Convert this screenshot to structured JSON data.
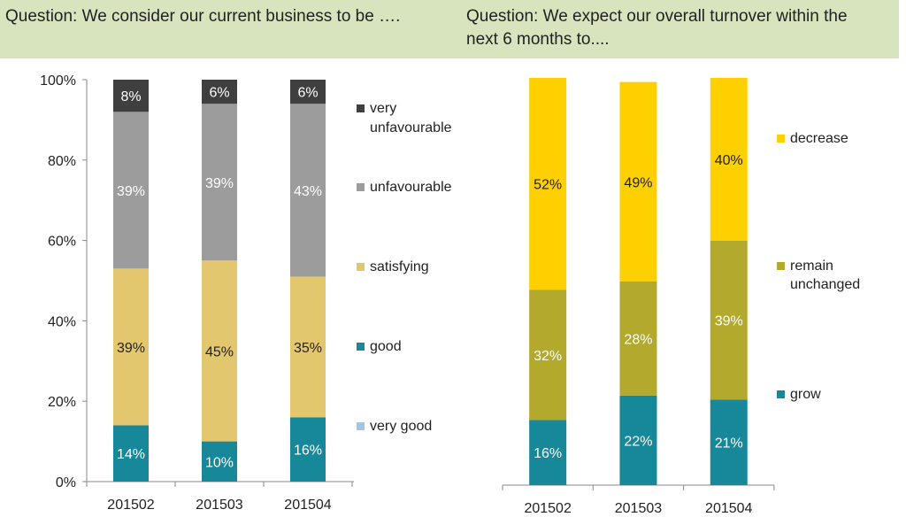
{
  "questions": {
    "left": "Question: We consider our current business to be ….",
    "right": "Question: We expect our overall turnover within the next 6 months to...."
  },
  "chart_data": [
    {
      "type": "bar",
      "stacked": true,
      "categories": [
        "201502",
        "201503",
        "201504"
      ],
      "ylim": [
        0,
        100
      ],
      "yticks": [
        "0%",
        "20%",
        "40%",
        "60%",
        "80%",
        "100%"
      ],
      "series": [
        {
          "name": "very good",
          "color": "#9fc7e4",
          "values": [
            0,
            0,
            0
          ],
          "labels": [
            "",
            "",
            ""
          ]
        },
        {
          "name": "good",
          "color": "#17879a",
          "values": [
            14,
            10,
            16
          ],
          "labels": [
            "14%",
            "10%",
            "16%"
          ]
        },
        {
          "name": "satisfying",
          "color": "#e3c76e",
          "values": [
            39,
            45,
            35
          ],
          "labels": [
            "39%",
            "45%",
            "35%"
          ]
        },
        {
          "name": "unfavourable",
          "color": "#9c9c9c",
          "values": [
            39,
            39,
            43
          ],
          "labels": [
            "39%",
            "39%",
            "43%"
          ]
        },
        {
          "name": "very unfavourable",
          "color": "#3f3f3f",
          "values": [
            8,
            6,
            6
          ],
          "labels": [
            "8%",
            "6%",
            "6%"
          ]
        }
      ],
      "legend": {
        "placement": "right",
        "items": [
          {
            "label": "very unfavourable",
            "color": "#3f3f3f"
          },
          {
            "label": "unfavourable",
            "color": "#9c9c9c"
          },
          {
            "label": "satisfying",
            "color": "#e3c76e"
          },
          {
            "label": "good",
            "color": "#17879a"
          },
          {
            "label": "very good",
            "color": "#9fc7e4"
          }
        ]
      }
    },
    {
      "type": "bar",
      "stacked": true,
      "categories": [
        "201502",
        "201503",
        "201504"
      ],
      "ylim": [
        0,
        100
      ],
      "yticks": [],
      "series": [
        {
          "name": "grow",
          "color": "#17879a",
          "values": [
            16,
            22,
            21
          ],
          "labels": [
            "16%",
            "22%",
            "21%"
          ]
        },
        {
          "name": "remain unchanged",
          "color": "#b3a92c",
          "values": [
            32,
            28,
            39
          ],
          "labels": [
            "32%",
            "28%",
            "39%"
          ]
        },
        {
          "name": "decrease",
          "color": "#ffd000",
          "values": [
            52,
            49,
            40
          ],
          "labels": [
            "52%",
            "49%",
            "40%"
          ]
        }
      ],
      "legend": {
        "placement": "right",
        "items": [
          {
            "label": "decrease",
            "color": "#ffd000"
          },
          {
            "label": "remain unchanged",
            "color": "#b3a92c"
          },
          {
            "label": "grow",
            "color": "#17879a"
          }
        ]
      }
    }
  ]
}
